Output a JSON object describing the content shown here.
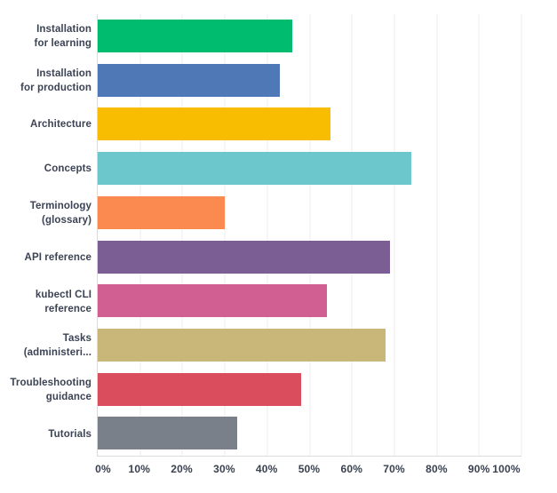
{
  "chart_data": {
    "type": "bar",
    "orientation": "horizontal",
    "title": "",
    "xlabel": "",
    "ylabel": "",
    "categories": [
      "Installation\nfor learning",
      "Installation\nfor production",
      "Architecture",
      "Concepts",
      "Terminology\n(glossary)",
      "API reference",
      "kubectl CLI\nreference",
      "Tasks\n(administeri...",
      "Troubleshooting\nguidance",
      "Tutorials"
    ],
    "values": [
      46,
      43,
      55,
      74,
      30,
      69,
      54,
      68,
      48,
      33
    ],
    "value_unit": "%",
    "bar_colors": [
      "#00BC6F",
      "#4E79B6",
      "#F8BD00",
      "#6BC7CB",
      "#FB8A51",
      "#7B5E94",
      "#D15F92",
      "#C8B778",
      "#DA4D5D",
      "#79808A"
    ],
    "x_ticks": [
      "0%",
      "10%",
      "20%",
      "30%",
      "40%",
      "50%",
      "60%",
      "70%",
      "80%",
      "90%",
      "100%"
    ],
    "xlim": [
      0,
      100
    ],
    "grid": true,
    "legend_position": "none"
  },
  "colors": {
    "background": "#FFFFFF",
    "category_label_text": "#3B4354",
    "tick_label_text": "#39404F",
    "gridline": "#ECECEC",
    "axis_line": "#D9DCDF"
  }
}
